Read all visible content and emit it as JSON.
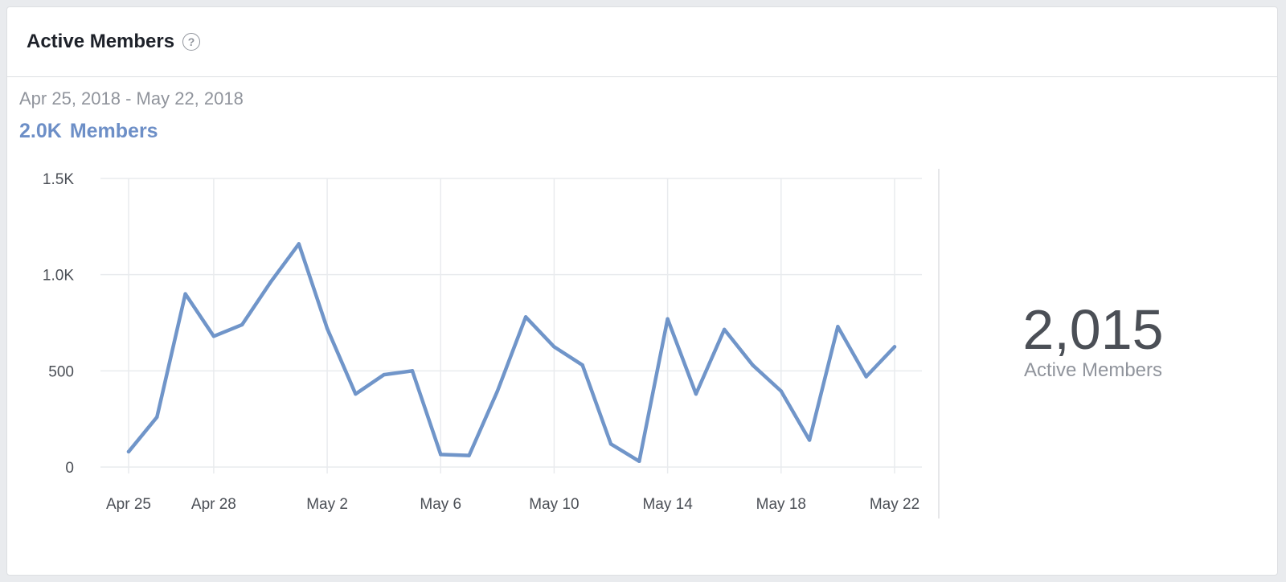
{
  "card": {
    "title": "Active Members",
    "help_icon": "question-circle-icon"
  },
  "summary": {
    "date_range": "Apr 25, 2018 - May 22, 2018",
    "members_value": "2.0K",
    "members_label": "Members"
  },
  "stat": {
    "value": "2,015",
    "label": "Active Members"
  },
  "colors": {
    "line": "#7095c9",
    "grid": "#e9ebee",
    "axis_text": "#4b4f56",
    "accent": "#6d8fc7"
  },
  "chart_data": {
    "type": "line",
    "x": [
      "Apr 25",
      "Apr 26",
      "Apr 27",
      "Apr 28",
      "Apr 29",
      "Apr 30",
      "May 1",
      "May 2",
      "May 3",
      "May 4",
      "May 5",
      "May 6",
      "May 7",
      "May 8",
      "May 9",
      "May 10",
      "May 11",
      "May 12",
      "May 13",
      "May 14",
      "May 15",
      "May 16",
      "May 17",
      "May 18",
      "May 19",
      "May 20",
      "May 21",
      "May 22"
    ],
    "series": [
      {
        "values": [
          80,
          260,
          900,
          680,
          740,
          960,
          1160,
          720,
          380,
          480,
          500,
          65,
          60,
          395,
          780,
          625,
          530,
          120,
          30,
          770,
          380,
          715,
          530,
          395,
          140,
          730,
          470,
          625
        ]
      }
    ],
    "x_tick_labels": [
      "Apr 25",
      "Apr 28",
      "May 2",
      "May 6",
      "May 10",
      "May 14",
      "May 18",
      "May 22"
    ],
    "y_tick_labels": [
      "0",
      "500",
      "1.0K",
      "1.5K"
    ],
    "y_ticks": [
      0,
      500,
      1000,
      1500
    ],
    "ylim": [
      0,
      1500
    ],
    "grid": true,
    "title": "",
    "xlabel": "",
    "ylabel": ""
  }
}
